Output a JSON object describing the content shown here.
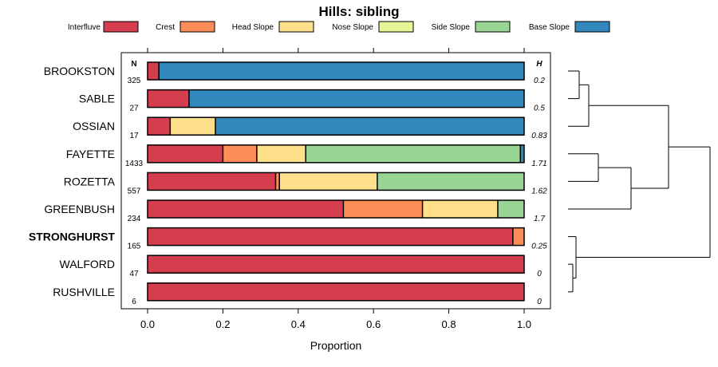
{
  "chart_data": {
    "type": "bar",
    "stacked": true,
    "orientation": "horizontal",
    "title": "Hills: sibling",
    "xlabel": "Proportion",
    "xlim": [
      0,
      1
    ],
    "xticks": [
      0,
      0.2,
      0.4,
      0.6,
      0.8,
      1
    ],
    "xtick_labels": [
      "0.0",
      "0.2",
      "0.4",
      "0.6",
      "0.8",
      "1.0"
    ],
    "n_header": "N",
    "h_header": "H",
    "legend": [
      {
        "name": "Interfluve",
        "color": "#D53E4F"
      },
      {
        "name": "Crest",
        "color": "#FC8D59"
      },
      {
        "name": "Head Slope",
        "color": "#FEE08B"
      },
      {
        "name": "Nose Slope",
        "color": "#E6F598"
      },
      {
        "name": "Side Slope",
        "color": "#99D594"
      },
      {
        "name": "Base Slope",
        "color": "#3288BD"
      }
    ],
    "rows": [
      {
        "name": "BROOKSTON",
        "n": "325",
        "h": "0.2",
        "bold": false,
        "values": [
          0.03,
          0,
          0,
          0,
          0,
          0.97
        ]
      },
      {
        "name": "SABLE",
        "n": "27",
        "h": "0.5",
        "bold": false,
        "values": [
          0.11,
          0,
          0,
          0,
          0,
          0.89
        ]
      },
      {
        "name": "OSSIAN",
        "n": "17",
        "h": "0.83",
        "bold": false,
        "values": [
          0.06,
          0,
          0.12,
          0,
          0,
          0.82
        ]
      },
      {
        "name": "FAYETTE",
        "n": "1433",
        "h": "1.71",
        "bold": false,
        "values": [
          0.2,
          0.09,
          0.13,
          0,
          0.57,
          0.01
        ]
      },
      {
        "name": "ROZETTA",
        "n": "557",
        "h": "1.62",
        "bold": false,
        "values": [
          0.34,
          0.01,
          0.26,
          0,
          0.39,
          0
        ]
      },
      {
        "name": "GREENBUSH",
        "n": "234",
        "h": "1.7",
        "bold": false,
        "values": [
          0.52,
          0.21,
          0.2,
          0,
          0.07,
          0
        ]
      },
      {
        "name": "STRONGHURST",
        "n": "165",
        "h": "0.25",
        "bold": true,
        "values": [
          0.97,
          0.03,
          0,
          0,
          0,
          0
        ]
      },
      {
        "name": "WALFORD",
        "n": "47",
        "h": "0",
        "bold": false,
        "values": [
          1,
          0,
          0,
          0,
          0,
          0
        ]
      },
      {
        "name": "RUSHVILLE",
        "n": "6",
        "h": "0",
        "bold": false,
        "values": [
          1,
          0,
          0,
          0,
          0,
          0
        ]
      }
    ],
    "dendrogram": {
      "groups": [
        {
          "members": [
            "BROOKSTON",
            "SABLE",
            "OSSIAN"
          ]
        },
        {
          "members": [
            "FAYETTE",
            "ROZETTA",
            "GREENBUSH"
          ]
        },
        {
          "members": [
            "STRONGHURST",
            "WALFORD",
            "RUSHVILLE"
          ]
        }
      ]
    }
  }
}
